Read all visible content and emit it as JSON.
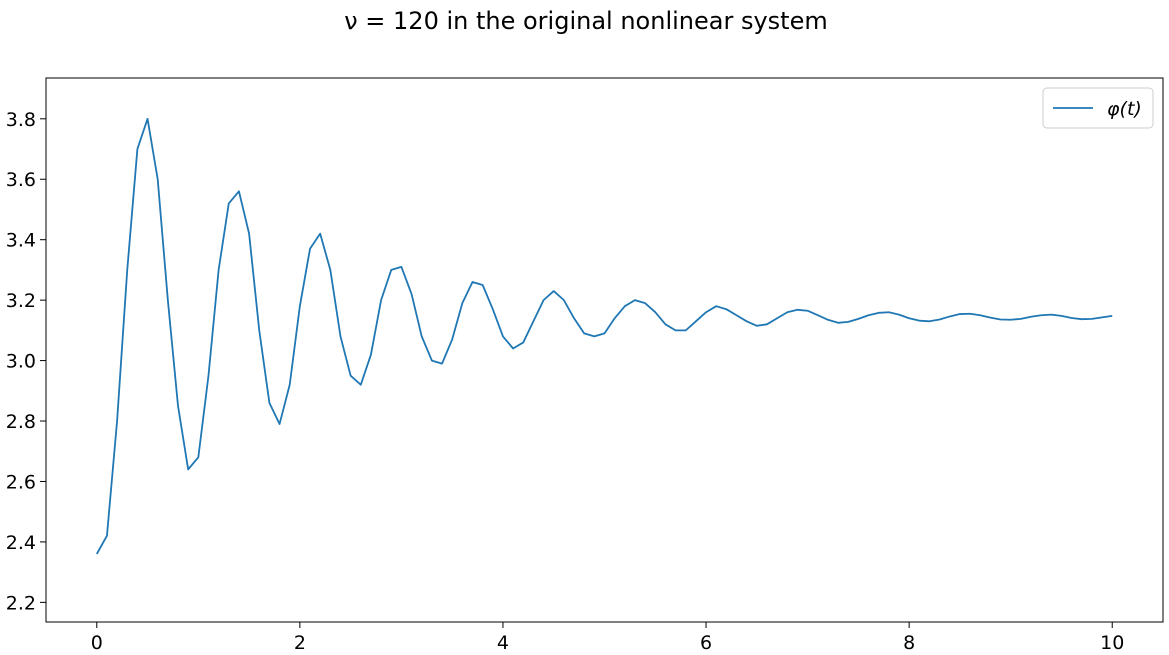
{
  "chart_data": {
    "type": "line",
    "title": "ν = 120 in the original nonlinear system",
    "xlabel": "",
    "ylabel": "",
    "xlim": [
      -0.5,
      10.5
    ],
    "ylim": [
      2.135,
      3.935
    ],
    "xticks": [
      0,
      2,
      4,
      6,
      8,
      10
    ],
    "xtick_labels": [
      "0",
      "2",
      "4",
      "6",
      "8",
      "10"
    ],
    "yticks": [
      2.2,
      2.4,
      2.6,
      2.8,
      3.0,
      3.2,
      3.4,
      3.6,
      3.8
    ],
    "ytick_labels": [
      "2.2",
      "2.4",
      "2.6",
      "2.8",
      "3.0",
      "3.2",
      "3.4",
      "3.6",
      "3.8"
    ],
    "grid": false,
    "legend_position": "top-right",
    "series": [
      {
        "name": "φ(t)",
        "color": "#1f77b4",
        "x": [
          0.0,
          0.1,
          0.2,
          0.3,
          0.4,
          0.5,
          0.6,
          0.7,
          0.8,
          0.9,
          1.0,
          1.1,
          1.2,
          1.3,
          1.4,
          1.5,
          1.6,
          1.7,
          1.8,
          1.9,
          2.0,
          2.1,
          2.2,
          2.3,
          2.4,
          2.5,
          2.6,
          2.7,
          2.8,
          2.9,
          3.0,
          3.1,
          3.2,
          3.3,
          3.4,
          3.5,
          3.6,
          3.7,
          3.8,
          3.9,
          4.0,
          4.1,
          4.2,
          4.3,
          4.4,
          4.5,
          4.6,
          4.7,
          4.8,
          4.9,
          5.0,
          5.1,
          5.2,
          5.3,
          5.4,
          5.5,
          5.6,
          5.7,
          5.8,
          5.9,
          6.0,
          6.1,
          6.2,
          6.3,
          6.4,
          6.5,
          6.6,
          6.7,
          6.8,
          6.9,
          7.0,
          7.1,
          7.2,
          7.3,
          7.4,
          7.5,
          7.6,
          7.7,
          7.8,
          7.9,
          8.0,
          8.1,
          8.2,
          8.3,
          8.4,
          8.5,
          8.6,
          8.7,
          8.8,
          8.9,
          9.0,
          9.1,
          9.2,
          9.3,
          9.4,
          9.5,
          9.6,
          9.7,
          9.8,
          9.9,
          10.0
        ],
        "y": [
          2.36,
          2.42,
          2.8,
          3.3,
          3.7,
          3.8,
          3.6,
          3.2,
          2.85,
          2.64,
          2.68,
          2.95,
          3.3,
          3.52,
          3.56,
          3.42,
          3.1,
          2.86,
          2.79,
          2.92,
          3.18,
          3.37,
          3.42,
          3.3,
          3.08,
          2.95,
          2.92,
          3.02,
          3.2,
          3.3,
          3.31,
          3.22,
          3.08,
          3.0,
          2.99,
          3.07,
          3.19,
          3.26,
          3.25,
          3.17,
          3.08,
          3.04,
          3.06,
          3.13,
          3.2,
          3.23,
          3.2,
          3.14,
          3.09,
          3.08,
          3.09,
          3.14,
          3.18,
          3.2,
          3.19,
          3.16,
          3.12,
          3.1,
          3.1,
          3.13,
          3.16,
          3.18,
          3.17,
          3.15,
          3.13,
          3.115,
          3.12,
          3.14,
          3.16,
          3.168,
          3.165,
          3.15,
          3.135,
          3.125,
          3.128,
          3.138,
          3.15,
          3.158,
          3.16,
          3.152,
          3.14,
          3.132,
          3.13,
          3.136,
          3.146,
          3.154,
          3.155,
          3.15,
          3.142,
          3.136,
          3.135,
          3.138,
          3.145,
          3.15,
          3.152,
          3.148,
          3.141,
          3.137,
          3.138,
          3.143,
          3.148
        ]
      }
    ]
  }
}
